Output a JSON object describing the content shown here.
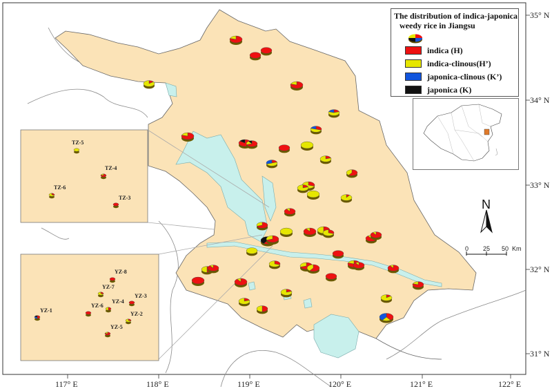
{
  "legend": {
    "title_line1": "The distribution of indica-japonica",
    "title_line2": "weedy rice in Jiangsu",
    "items": [
      {
        "label": "indica (H)",
        "color": "#ee1111"
      },
      {
        "label": "indica-clinous(H’)",
        "color": "#e6e600"
      },
      {
        "label": "japonica-clinous (K’)",
        "color": "#1155dd"
      },
      {
        "label": "japonica (K)",
        "color": "#111111"
      }
    ]
  },
  "lat_labels": [
    "35° N",
    "34° N",
    "33° N",
    "32° N",
    "31° N"
  ],
  "lon_labels": [
    "117° E",
    "118° E",
    "119° E",
    "120° E",
    "121° E",
    "122° E"
  ],
  "north": "N",
  "scale": {
    "t0": "0",
    "t1": "25",
    "t2": "50",
    "unit": "Km"
  },
  "inset_tz_labels": [
    "TZ-5",
    "TZ-4",
    "TZ-6",
    "TZ-3"
  ],
  "inset_yz_labels": [
    "YZ-8",
    "YZ-7",
    "YZ-3",
    "YZ-4",
    "YZ-1",
    "YZ-6",
    "YZ-2",
    "YZ-5"
  ],
  "colors": {
    "land": "#fbe3b7",
    "water": "#c8f0ec",
    "indica": "#ee1111",
    "indica_clinous": "#e6e600",
    "japonica_clinous": "#1155dd",
    "japonica": "#111111"
  }
}
